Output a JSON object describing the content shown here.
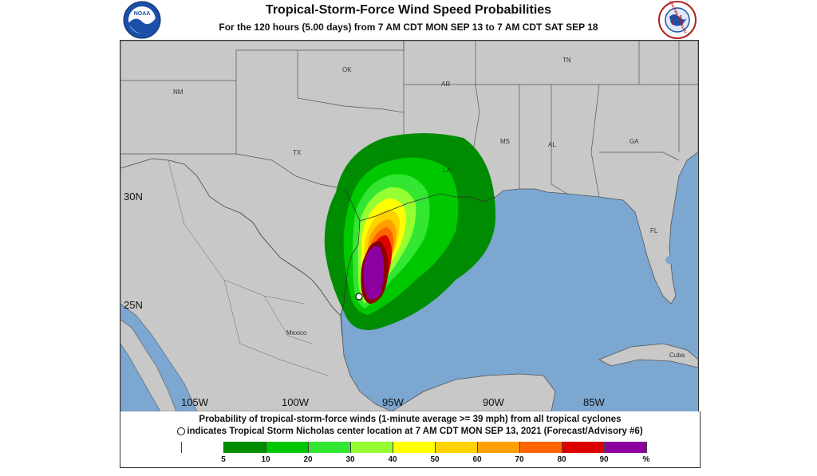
{
  "header": {
    "title": "Tropical-Storm-Force Wind Speed Probabilities",
    "subtitle": "For the 120 hours (5.00 days) from 7 AM CDT MON SEP 13 to 7 AM CDT SAT SEP 18",
    "logos": [
      "noaa-logo",
      "nws-logo"
    ],
    "logo_text": {
      "noaa": "NOAA",
      "nws": "NATIONAL WEATHER SERVICE"
    }
  },
  "map": {
    "lat_labels": [
      "30N",
      "25N"
    ],
    "lon_labels": [
      "105W",
      "100W",
      "95W",
      "90W",
      "85W"
    ],
    "region_labels": {
      "nm": "NM",
      "ok": "OK",
      "ar": "AR",
      "tn": "TN",
      "tx": "TX",
      "la": "LA",
      "ms": "MS",
      "al": "AL",
      "ga": "GA",
      "fl": "FL",
      "mexico": "Mexico",
      "cuba": "Cuba"
    },
    "storm_center_marker": "storm-center-circle",
    "colors": {
      "land": "#c8c8c8",
      "water": "#7ba7d1",
      "border": "#555555"
    }
  },
  "footer": {
    "line1": "Probability of tropical-storm-force winds (1-minute average >= 39 mph) from all tropical cyclones",
    "line2": "indicates Tropical Storm Nicholas center location at 7 AM CDT MON SEP 13, 2021 (Forecast/Advisory #6)"
  },
  "legend": {
    "colors": [
      "#ffffff",
      "#008c00",
      "#00c800",
      "#32e632",
      "#96ff32",
      "#ffff00",
      "#ffd200",
      "#ffa000",
      "#ff6400",
      "#dc0000",
      "#8c0000",
      "#8c00a0"
    ],
    "ticks": [
      "5",
      "10",
      "20",
      "30",
      "40",
      "50",
      "60",
      "70",
      "80",
      "90",
      "%"
    ]
  }
}
